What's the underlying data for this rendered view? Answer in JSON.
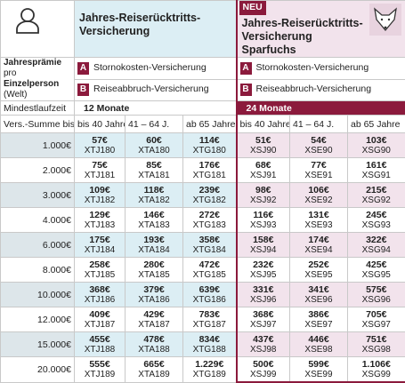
{
  "header": {
    "label_title": "Jahresprämie",
    "label_pro": "pro",
    "label_person": "Einzelperson",
    "label_region": "(Welt)"
  },
  "products": [
    {
      "title": "Jahres-Reiserücktritts-Versicherung",
      "min_term": "12 Monate"
    },
    {
      "title": "Jahres-Reiserücktritts-Versicherung Sparfuchs",
      "min_term": "24 Monate",
      "badge": "NEU"
    }
  ],
  "coverages": [
    {
      "letter": "A",
      "text": "Stornokosten-Versicherung"
    },
    {
      "letter": "B",
      "text": "Reiseabbruch-Versicherung"
    }
  ],
  "min_term_label": "Mindestlaufzeit",
  "sum_header": "Vers.-Summe bis",
  "age_groups": [
    "bis 40 Jahre",
    "41 – 64 J.",
    "ab 65 Jahre"
  ],
  "rows": [
    {
      "sum": "1.000€",
      "prices": [
        [
          "57€",
          "XTJ180"
        ],
        [
          "60€",
          "XTA180"
        ],
        [
          "114€",
          "XTG180"
        ],
        [
          "51€",
          "XSJ90"
        ],
        [
          "54€",
          "XSE90"
        ],
        [
          "103€",
          "XSG90"
        ]
      ]
    },
    {
      "sum": "2.000€",
      "prices": [
        [
          "75€",
          "XTJ181"
        ],
        [
          "85€",
          "XTA181"
        ],
        [
          "176€",
          "XTG181"
        ],
        [
          "68€",
          "XSJ91"
        ],
        [
          "77€",
          "XSE91"
        ],
        [
          "161€",
          "XSG91"
        ]
      ]
    },
    {
      "sum": "3.000€",
      "prices": [
        [
          "109€",
          "XTJ182"
        ],
        [
          "118€",
          "XTA182"
        ],
        [
          "239€",
          "XTG182"
        ],
        [
          "98€",
          "XSJ92"
        ],
        [
          "106€",
          "XSE92"
        ],
        [
          "215€",
          "XSG92"
        ]
      ]
    },
    {
      "sum": "4.000€",
      "prices": [
        [
          "129€",
          "XTJ183"
        ],
        [
          "146€",
          "XTA183"
        ],
        [
          "272€",
          "XTG183"
        ],
        [
          "116€",
          "XSJ93"
        ],
        [
          "131€",
          "XSE93"
        ],
        [
          "245€",
          "XSG93"
        ]
      ]
    },
    {
      "sum": "6.000€",
      "prices": [
        [
          "175€",
          "XTJ184"
        ],
        [
          "193€",
          "XTA184"
        ],
        [
          "358€",
          "XTG184"
        ],
        [
          "158€",
          "XSJ94"
        ],
        [
          "174€",
          "XSE94"
        ],
        [
          "322€",
          "XSG94"
        ]
      ]
    },
    {
      "sum": "8.000€",
      "prices": [
        [
          "258€",
          "XTJ185"
        ],
        [
          "280€",
          "XTA185"
        ],
        [
          "472€",
          "XTG185"
        ],
        [
          "232€",
          "XSJ95"
        ],
        [
          "252€",
          "XSE95"
        ],
        [
          "425€",
          "XSG95"
        ]
      ]
    },
    {
      "sum": "10.000€",
      "prices": [
        [
          "368€",
          "XTJ186"
        ],
        [
          "379€",
          "XTA186"
        ],
        [
          "639€",
          "XTG186"
        ],
        [
          "331€",
          "XSJ96"
        ],
        [
          "341€",
          "XSE96"
        ],
        [
          "575€",
          "XSG96"
        ]
      ]
    },
    {
      "sum": "12.000€",
      "prices": [
        [
          "409€",
          "XTJ187"
        ],
        [
          "429€",
          "XTA187"
        ],
        [
          "783€",
          "XTG187"
        ],
        [
          "368€",
          "XSJ97"
        ],
        [
          "386€",
          "XSE97"
        ],
        [
          "705€",
          "XSG97"
        ]
      ]
    },
    {
      "sum": "15.000€",
      "prices": [
        [
          "455€",
          "XTJ188"
        ],
        [
          "478€",
          "XTA188"
        ],
        [
          "834€",
          "XTG188"
        ],
        [
          "437€",
          "XSJ98"
        ],
        [
          "446€",
          "XSE98"
        ],
        [
          "751€",
          "XSG98"
        ]
      ]
    },
    {
      "sum": "20.000€",
      "prices": [
        [
          "555€",
          "XTJ189"
        ],
        [
          "665€",
          "XTA189"
        ],
        [
          "1.229€",
          "XTG189"
        ],
        [
          "500€",
          "XSJ99"
        ],
        [
          "599€",
          "XSE99"
        ],
        [
          "1.106€",
          "XSG99"
        ]
      ]
    }
  ]
}
